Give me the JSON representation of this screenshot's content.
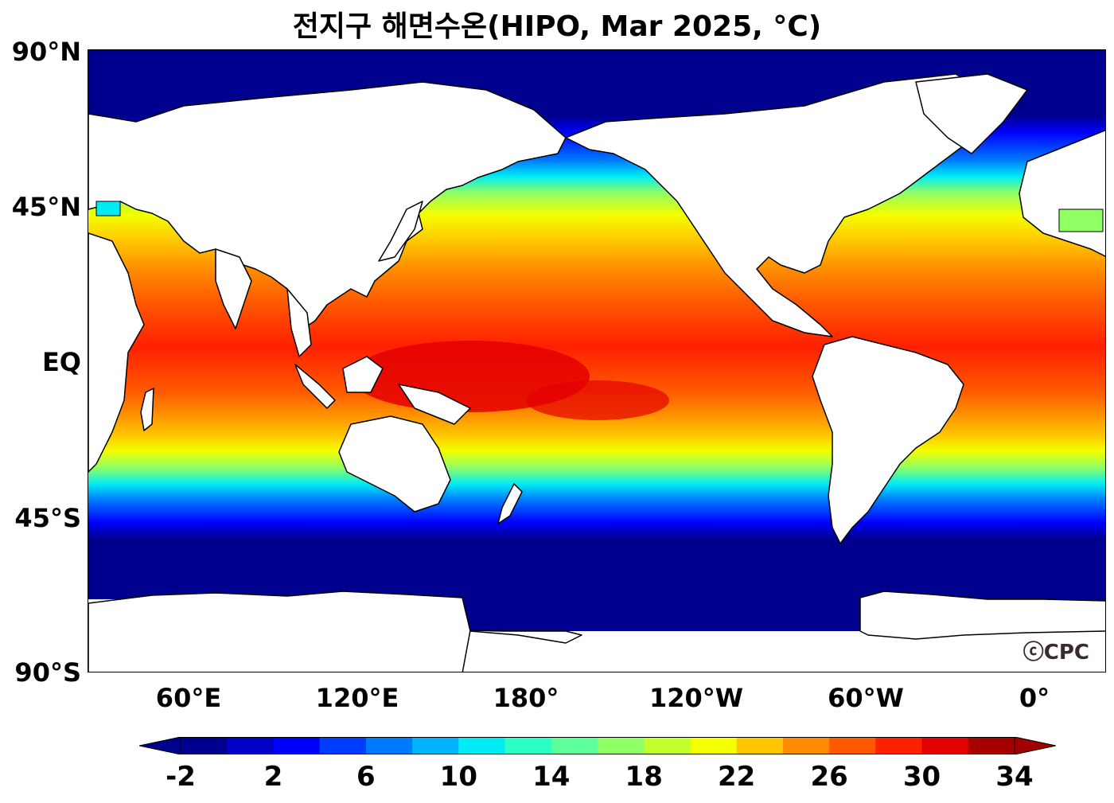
{
  "title": "전지구 해면수온(HIPO, Mar 2025, °C)",
  "lat_labels": [
    "90°N",
    "45°N",
    "EQ",
    "45°S",
    "90°S"
  ],
  "lon_labels": [
    "60°E",
    "120°E",
    "180°",
    "120°W",
    "60°W",
    "0°"
  ],
  "watermark": "ⓒCPC",
  "colorbar": {
    "tick_labels": [
      "-2",
      "2",
      "6",
      "10",
      "14",
      "18",
      "22",
      "26",
      "30",
      "34"
    ],
    "colors": [
      "#00008f",
      "#0000c8",
      "#0000ff",
      "#003cff",
      "#0078ff",
      "#00b4ff",
      "#00ecf4",
      "#2cffc4",
      "#5cff98",
      "#90ff64",
      "#c4ff30",
      "#f4ff00",
      "#ffc400",
      "#ff8c00",
      "#ff5800",
      "#ff2000",
      "#e40000",
      "#a80000"
    ],
    "under_color": "#00008f",
    "over_color": "#a00000"
  }
}
